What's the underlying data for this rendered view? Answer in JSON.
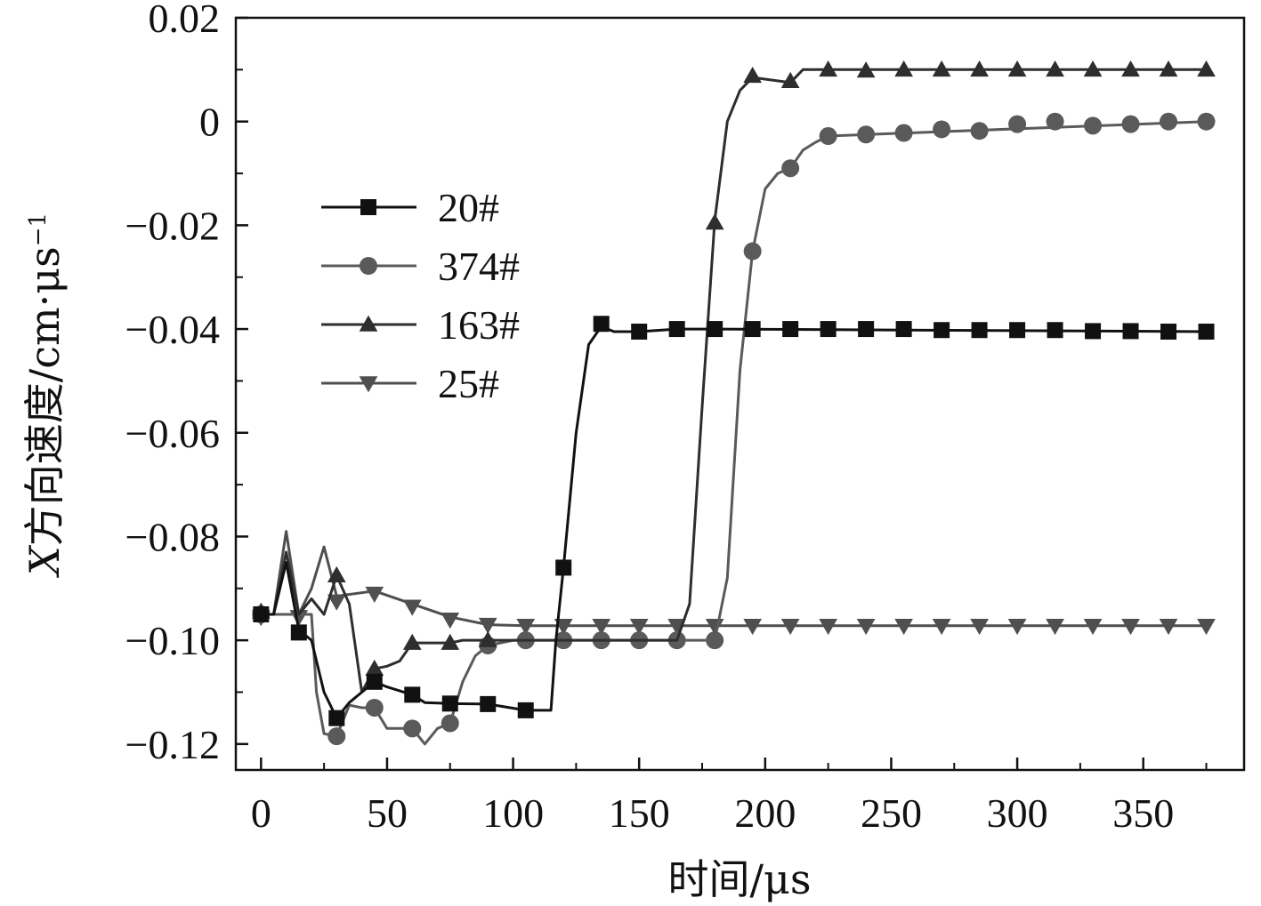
{
  "chart_data": {
    "type": "line",
    "title": "",
    "xlabel": "时间/μs",
    "ylabel": "X方向速度/cm·μs",
    "ylabel_italic_prefix": "X",
    "ylabel_body": "方向速度/cm·μs",
    "ylabel_superscript": "−1",
    "xlim": [
      -10,
      390
    ],
    "ylim": [
      -0.125,
      0.02
    ],
    "xticks": [
      0,
      50,
      100,
      150,
      200,
      250,
      300,
      350
    ],
    "xtick_labels": [
      "0",
      "50",
      "100",
      "150",
      "200",
      "250",
      "300",
      "350"
    ],
    "yticks": [
      0.02,
      0,
      -0.02,
      -0.04,
      -0.06,
      -0.08,
      -0.1,
      -0.12
    ],
    "ytick_labels": [
      "0.02",
      "0",
      "−0.02",
      "−0.04",
      "−0.06",
      "−0.08",
      "−0.10",
      "−0.12"
    ],
    "grid": false,
    "legend_position": "upper-left",
    "series": [
      {
        "name": "20#",
        "marker": "square",
        "color": "#111111",
        "line": [
          [
            0,
            -0.095
          ],
          [
            5,
            -0.095
          ],
          [
            10,
            -0.085
          ],
          [
            15,
            -0.098
          ],
          [
            20,
            -0.1
          ],
          [
            25,
            -0.11
          ],
          [
            30,
            -0.115
          ],
          [
            35,
            -0.112
          ],
          [
            40,
            -0.11
          ],
          [
            45,
            -0.108
          ],
          [
            50,
            -0.109
          ],
          [
            60,
            -0.1105
          ],
          [
            65,
            -0.112
          ],
          [
            75,
            -0.1122
          ],
          [
            90,
            -0.1123
          ],
          [
            105,
            -0.1135
          ],
          [
            115,
            -0.1135
          ],
          [
            117,
            -0.1
          ],
          [
            120,
            -0.086
          ],
          [
            125,
            -0.06
          ],
          [
            130,
            -0.043
          ],
          [
            135,
            -0.0395
          ],
          [
            140,
            -0.0405
          ],
          [
            150,
            -0.0405
          ],
          [
            165,
            -0.04
          ],
          [
            180,
            -0.04
          ],
          [
            375,
            -0.0405
          ]
        ],
        "markers": [
          [
            0,
            -0.095
          ],
          [
            15,
            -0.0985
          ],
          [
            30,
            -0.115
          ],
          [
            45,
            -0.108
          ],
          [
            60,
            -0.1105
          ],
          [
            75,
            -0.1122
          ],
          [
            90,
            -0.1123
          ],
          [
            105,
            -0.1135
          ],
          [
            120,
            -0.086
          ],
          [
            135,
            -0.039
          ],
          [
            150,
            -0.0405
          ],
          [
            165,
            -0.04
          ],
          [
            180,
            -0.04
          ],
          [
            195,
            -0.04
          ],
          [
            210,
            -0.04
          ],
          [
            225,
            -0.04
          ],
          [
            240,
            -0.04
          ],
          [
            255,
            -0.04
          ],
          [
            270,
            -0.0402
          ],
          [
            285,
            -0.0402
          ],
          [
            300,
            -0.0402
          ],
          [
            315,
            -0.0402
          ],
          [
            330,
            -0.0404
          ],
          [
            345,
            -0.0404
          ],
          [
            360,
            -0.0405
          ],
          [
            375,
            -0.0405
          ]
        ]
      },
      {
        "name": "374#",
        "marker": "circle",
        "color": "#5a5a5a",
        "line": [
          [
            0,
            -0.095
          ],
          [
            10,
            -0.095
          ],
          [
            20,
            -0.095
          ],
          [
            22,
            -0.11
          ],
          [
            25,
            -0.118
          ],
          [
            30,
            -0.1185
          ],
          [
            35,
            -0.1125
          ],
          [
            40,
            -0.113
          ],
          [
            45,
            -0.113
          ],
          [
            50,
            -0.117
          ],
          [
            60,
            -0.117
          ],
          [
            65,
            -0.12
          ],
          [
            70,
            -0.117
          ],
          [
            75,
            -0.116
          ],
          [
            80,
            -0.108
          ],
          [
            85,
            -0.103
          ],
          [
            90,
            -0.101
          ],
          [
            100,
            -0.1
          ],
          [
            165,
            -0.1
          ],
          [
            180,
            -0.1
          ],
          [
            185,
            -0.088
          ],
          [
            190,
            -0.048
          ],
          [
            195,
            -0.025
          ],
          [
            200,
            -0.013
          ],
          [
            205,
            -0.01
          ],
          [
            210,
            -0.009
          ],
          [
            215,
            -0.0055
          ],
          [
            220,
            -0.004
          ],
          [
            225,
            -0.0028
          ],
          [
            375,
            0
          ]
        ],
        "markers": [
          [
            0,
            -0.095
          ],
          [
            30,
            -0.1185
          ],
          [
            45,
            -0.113
          ],
          [
            60,
            -0.117
          ],
          [
            75,
            -0.116
          ],
          [
            90,
            -0.101
          ],
          [
            105,
            -0.1
          ],
          [
            120,
            -0.1
          ],
          [
            135,
            -0.1
          ],
          [
            150,
            -0.1
          ],
          [
            165,
            -0.1
          ],
          [
            180,
            -0.1
          ],
          [
            195,
            -0.025
          ],
          [
            210,
            -0.009
          ],
          [
            225,
            -0.0028
          ],
          [
            240,
            -0.0025
          ],
          [
            255,
            -0.0022
          ],
          [
            270,
            -0.0015
          ],
          [
            285,
            -0.0018
          ],
          [
            300,
            -0.0005
          ],
          [
            315,
            0
          ],
          [
            330,
            -0.0008
          ],
          [
            345,
            -0.0005
          ],
          [
            360,
            0
          ],
          [
            375,
            0
          ]
        ]
      },
      {
        "name": "163#",
        "marker": "triangle-up",
        "color": "#2e2e2e",
        "line": [
          [
            0,
            -0.095
          ],
          [
            5,
            -0.095
          ],
          [
            10,
            -0.083
          ],
          [
            15,
            -0.095
          ],
          [
            20,
            -0.092
          ],
          [
            25,
            -0.095
          ],
          [
            30,
            -0.0875
          ],
          [
            35,
            -0.093
          ],
          [
            40,
            -0.11
          ],
          [
            45,
            -0.1055
          ],
          [
            50,
            -0.105
          ],
          [
            55,
            -0.104
          ],
          [
            60,
            -0.1005
          ],
          [
            75,
            -0.1005
          ],
          [
            80,
            -0.1
          ],
          [
            90,
            -0.1
          ],
          [
            165,
            -0.1
          ],
          [
            170,
            -0.093
          ],
          [
            175,
            -0.055
          ],
          [
            180,
            -0.019
          ],
          [
            185,
            0
          ],
          [
            190,
            0.006
          ],
          [
            195,
            0.0085
          ],
          [
            210,
            0.0075
          ],
          [
            215,
            0.01
          ],
          [
            375,
            0.01
          ]
        ],
        "markers": [
          [
            0,
            -0.0945
          ],
          [
            30,
            -0.0875
          ],
          [
            45,
            -0.1055
          ],
          [
            60,
            -0.1005
          ],
          [
            75,
            -0.1005
          ],
          [
            90,
            -0.1
          ],
          [
            180,
            -0.0195
          ],
          [
            195,
            0.0088
          ],
          [
            210,
            0.0078
          ],
          [
            225,
            0.01
          ],
          [
            240,
            0.0098
          ],
          [
            255,
            0.01
          ],
          [
            270,
            0.01
          ],
          [
            285,
            0.01
          ],
          [
            300,
            0.01
          ],
          [
            315,
            0.01
          ],
          [
            330,
            0.01
          ],
          [
            345,
            0.01
          ],
          [
            360,
            0.01
          ],
          [
            375,
            0.01
          ]
        ]
      },
      {
        "name": "25#",
        "marker": "triangle-down",
        "color": "#4f4f4f",
        "line": [
          [
            0,
            -0.095
          ],
          [
            5,
            -0.095
          ],
          [
            10,
            -0.079
          ],
          [
            15,
            -0.095
          ],
          [
            20,
            -0.09
          ],
          [
            25,
            -0.082
          ],
          [
            30,
            -0.0915
          ],
          [
            45,
            -0.0905
          ],
          [
            60,
            -0.093
          ],
          [
            75,
            -0.0955
          ],
          [
            90,
            -0.097
          ],
          [
            105,
            -0.0972
          ],
          [
            375,
            -0.0972
          ]
        ],
        "markers": [
          [
            0,
            -0.0955
          ],
          [
            15,
            -0.0955
          ],
          [
            30,
            -0.0925
          ],
          [
            45,
            -0.091
          ],
          [
            60,
            -0.0935
          ],
          [
            75,
            -0.096
          ],
          [
            90,
            -0.097
          ],
          [
            105,
            -0.0972
          ],
          [
            120,
            -0.0972
          ],
          [
            135,
            -0.0972
          ],
          [
            150,
            -0.0972
          ],
          [
            165,
            -0.0972
          ],
          [
            180,
            -0.0972
          ],
          [
            195,
            -0.0972
          ],
          [
            210,
            -0.0972
          ],
          [
            225,
            -0.0972
          ],
          [
            240,
            -0.0972
          ],
          [
            255,
            -0.0972
          ],
          [
            270,
            -0.0972
          ],
          [
            285,
            -0.0972
          ],
          [
            300,
            -0.0972
          ],
          [
            315,
            -0.0972
          ],
          [
            330,
            -0.0972
          ],
          [
            345,
            -0.0972
          ],
          [
            360,
            -0.0972
          ],
          [
            375,
            -0.0972
          ]
        ]
      }
    ]
  }
}
